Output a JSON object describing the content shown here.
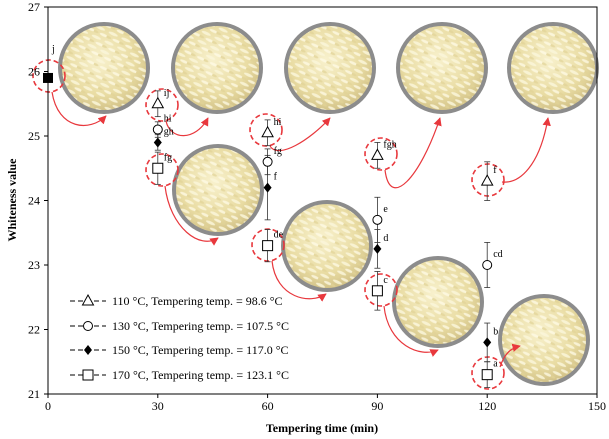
{
  "chart_data": {
    "type": "scatter",
    "xlabel": "Tempering time (min)",
    "ylabel": "Whiteness value",
    "xlim": [
      0,
      150
    ],
    "ylim": [
      21,
      27
    ],
    "xticks": [
      0,
      30,
      60,
      90,
      120,
      150
    ],
    "yticks": [
      21,
      22,
      23,
      24,
      25,
      26,
      27
    ],
    "grid": false,
    "legend_position": "bottom-left",
    "control": {
      "x": 0,
      "y": 25.9,
      "letter": "j"
    },
    "series": [
      {
        "name": "110 °C, Tempering temp. = 98.6  °C",
        "marker": "triangle-open",
        "x": [
          30,
          60,
          90,
          120
        ],
        "y": [
          25.5,
          25.05,
          24.7,
          24.3
        ],
        "err": [
          0.2,
          0.2,
          0.2,
          0.3
        ],
        "letters": [
          "ij",
          "hi",
          "fgh",
          "f"
        ]
      },
      {
        "name": "130 °C, Tempering temp. = 107.5  °C",
        "marker": "circle-open",
        "x": [
          30,
          60,
          90,
          120
        ],
        "y": [
          25.1,
          24.6,
          23.7,
          23.0
        ],
        "err": [
          0.12,
          0.2,
          0.35,
          0.35
        ],
        "letters": [
          "hi",
          "fg",
          "e",
          "cd"
        ]
      },
      {
        "name": "150 °C, Tempering temp. = 117.0  °C",
        "marker": "diamond-filled",
        "x": [
          30,
          60,
          90,
          120
        ],
        "y": [
          24.9,
          24.2,
          23.25,
          21.8
        ],
        "err": [
          0.12,
          0.5,
          0.3,
          0.3
        ],
        "letters": [
          "gh",
          "f",
          "d",
          "b"
        ]
      },
      {
        "name": "170 °C, Tempering temp. = 123.1  °C",
        "marker": "square-open",
        "x": [
          30,
          60,
          90,
          120
        ],
        "y": [
          24.5,
          23.3,
          22.6,
          21.3
        ],
        "err": [
          0.25,
          0.25,
          0.3,
          0.2
        ],
        "letters": [
          "fg",
          "de",
          "c",
          "a"
        ]
      }
    ]
  },
  "colors": {
    "axis": "#000000",
    "marker": "#000000",
    "highlight": "#e8383d",
    "rice_plate": "#8c8c8c",
    "rice_light": "#efe6b8",
    "rice_grain": "#fbf6d8"
  }
}
